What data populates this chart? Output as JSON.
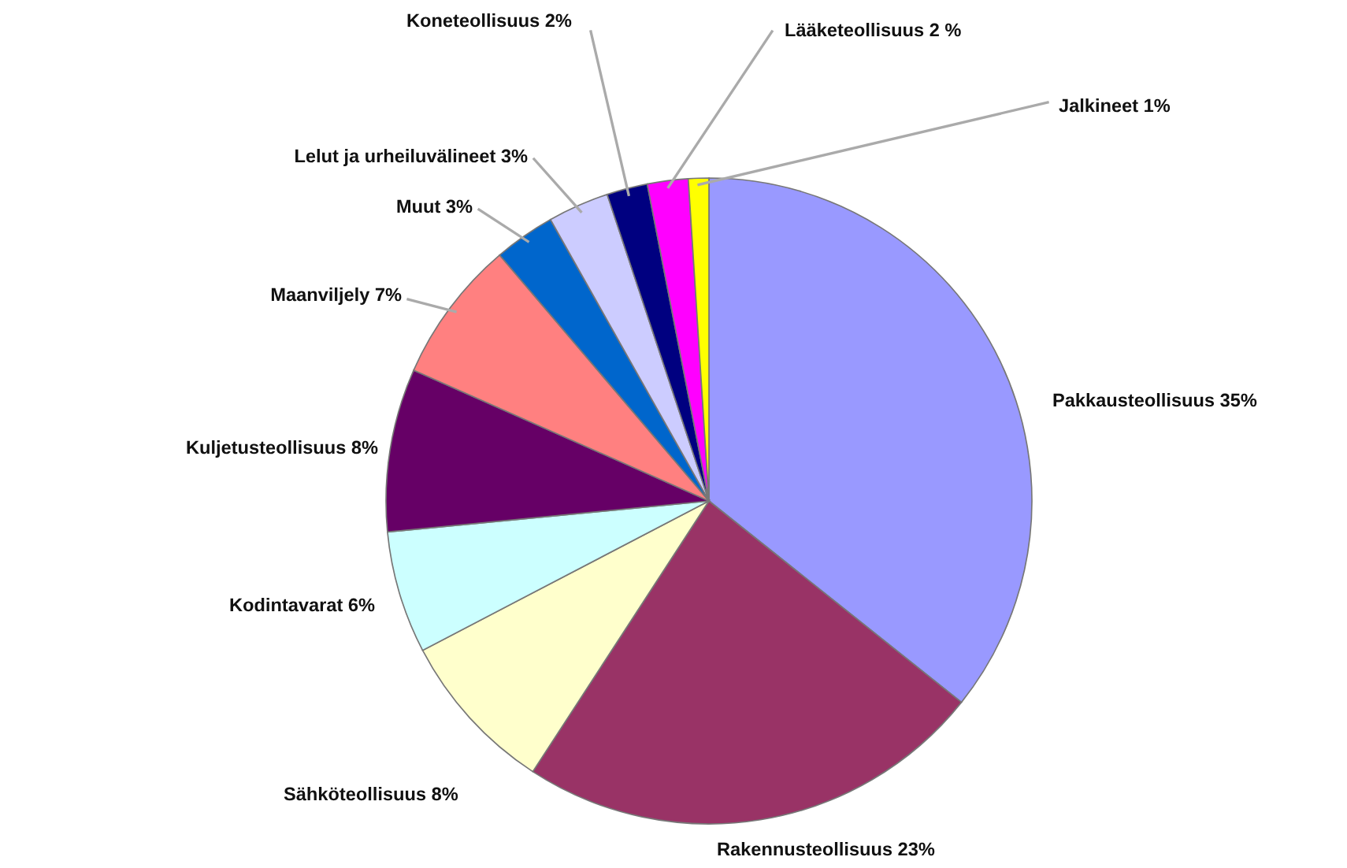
{
  "chart_data": {
    "type": "pie",
    "categories": [
      "Pakkausteollisuus",
      "Rakennusteollisuus",
      "Sähköteollisuus",
      "Kodintavarat",
      "Kuljetusteollisuus",
      "Maanviljely",
      "Muut",
      "Lelut ja urheiluvälineet",
      "Koneteollisuus",
      "Lääketeollisuus",
      "Jalkineet"
    ],
    "values": [
      35,
      23,
      8,
      6,
      8,
      7,
      3,
      3,
      2,
      2,
      1
    ],
    "value_labels": [
      "35%",
      "23%",
      "8%",
      "6%",
      "8%",
      "7%",
      "3%",
      "3%",
      "2%",
      "2 %",
      "1%"
    ],
    "colors": [
      "#9999ff",
      "#993366",
      "#ffffcc",
      "#ccffff",
      "#660066",
      "#ff8080",
      "#0066cc",
      "#ccccff",
      "#000080",
      "#ff00ff",
      "#ffff00"
    ],
    "legend": false
  }
}
